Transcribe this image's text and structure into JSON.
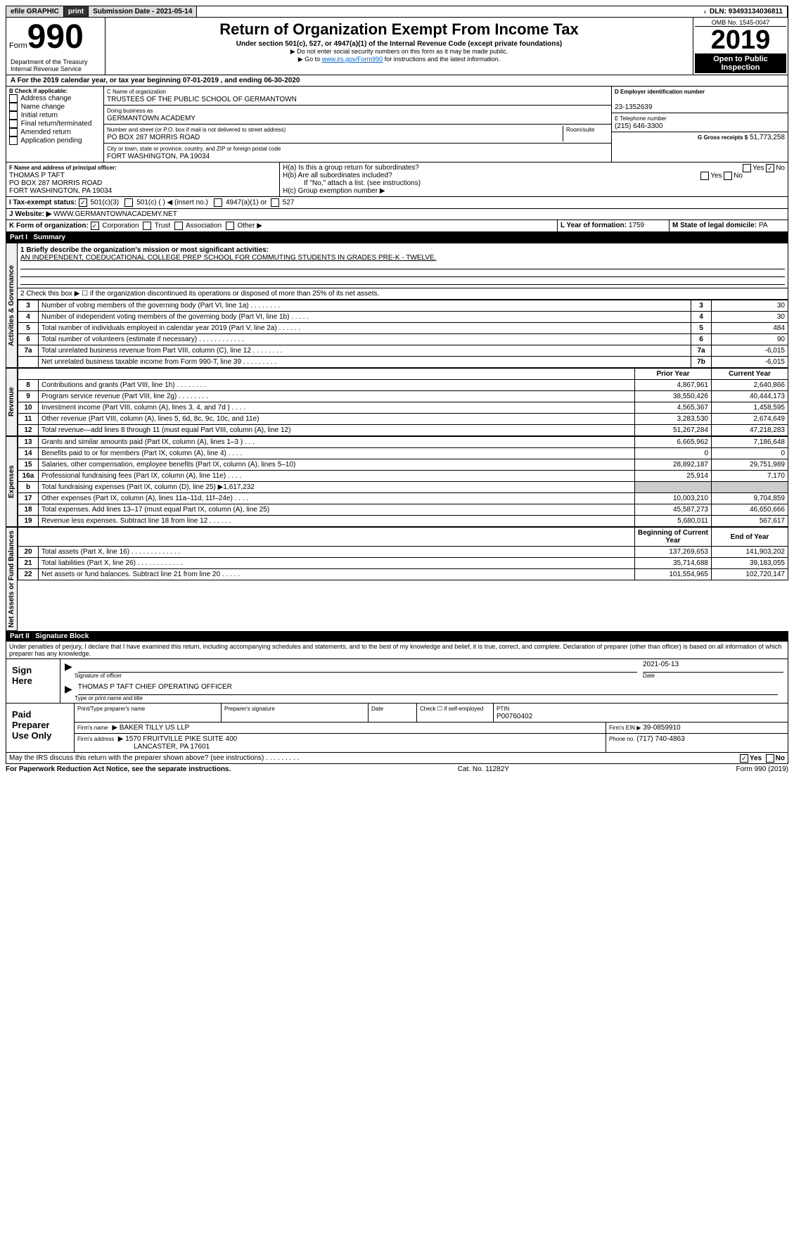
{
  "hdr": {
    "efile": "efile GRAPHIC",
    "print": "print",
    "subdate": "Submission Date - 2021-05-14",
    "dln": "DLN: 93493134036811"
  },
  "form": {
    "form": "Form",
    "num": "990",
    "title": "Return of Organization Exempt From Income Tax",
    "sub": "Under section 501(c), 527, or 4947(a)(1) of the Internal Revenue Code (except private foundations)",
    "note1": "▶ Do not enter social security numbers on this form as it may be made public.",
    "note2a": "▶ Go to ",
    "note2link": "www.irs.gov/Form990",
    "note2b": " for instructions and the latest information.",
    "omb": "OMB No. 1545-0047",
    "yr": "2019",
    "open1": "Open to Public",
    "open2": "Inspection",
    "dept": "Department of the Treasury",
    "irs": "Internal Revenue Service"
  },
  "a": {
    "line": "A For the 2019 calendar year, or tax year beginning 07-01-2019     , and ending 06-30-2020"
  },
  "b": {
    "hdr": "B Check if applicable:",
    "items": [
      "Address change",
      "Name change",
      "Initial return",
      "Final return/terminated",
      "Amended return",
      "Application pending"
    ]
  },
  "c": {
    "lbl": "C Name of organization",
    "name": "TRUSTEES OF THE PUBLIC SCHOOL OF GERMANTOWN",
    "dba_lbl": "Doing business as",
    "dba": "GERMANTOWN ACADEMY",
    "addr_lbl": "Number and street (or P.O. box if mail is not delivered to street address)",
    "room": "Room/suite",
    "addr": "PO BOX 287 MORRIS ROAD",
    "city_lbl": "City or town, state or province, country, and ZIP or foreign postal code",
    "city": "FORT WASHINGTON, PA  19034"
  },
  "d": {
    "lbl": "D Employer identification number",
    "val": "23-1352639"
  },
  "e": {
    "lbl": "E Telephone number",
    "val": "(215) 646-3300"
  },
  "g": {
    "lbl": "G Gross receipts $",
    "val": "51,773,258"
  },
  "f": {
    "lbl": "F Name and address of principal officer:",
    "name": "THOMAS P TAFT",
    "addr": "PO BOX 287 MORRIS ROAD",
    "city": "FORT WASHINGTON, PA  19034"
  },
  "h": {
    "a": "H(a)  Is this a group return for subordinates?",
    "b": "H(b)  Are all subordinates included?",
    "note": "If \"No,\" attach a list. (see instructions)",
    "c": "H(c)  Group exemption number ▶",
    "yes": "Yes",
    "no": "No"
  },
  "i": {
    "lbl": "I   Tax-exempt status:",
    "c3": "501(c)(3)",
    "c": "501(c) (   ) ◀ (insert no.)",
    "a1": "4947(a)(1) or",
    "527": "527"
  },
  "j": {
    "lbl": "J   Website: ▶",
    "val": "WWW.GERMANTOWNACADEMY.NET"
  },
  "k": {
    "lbl": "K Form of organization:",
    "corp": "Corporation",
    "trust": "Trust",
    "assoc": "Association",
    "other": "Other ▶"
  },
  "l": {
    "lbl": "L Year of formation:",
    "val": "1759"
  },
  "m": {
    "lbl": "M State of legal domicile:",
    "val": "PA"
  },
  "p1": {
    "num": "Part I",
    "title": "Summary"
  },
  "s1": {
    "lbl": "1  Briefly describe the organization's mission or most significant activities:",
    "val": "AN INDEPENDENT, COEDUCATIONAL COLLEGE PREP SCHOOL FOR COMMUTING STUDENTS IN GRADES PRE-K - TWELVE."
  },
  "s2": "2   Check this box ▶ ☐  if the organization discontinued its operations or disposed of more than 25% of its net assets.",
  "sec1": "Activities & Governance",
  "sec2": "Revenue",
  "sec3": "Expenses",
  "sec4": "Net Assets or Fund Balances",
  "py": "Prior Year",
  "cy": "Current Year",
  "bcy": "Beginning of Current Year",
  "eoy": "End of Year",
  "rows": [
    {
      "n": "3",
      "d": "Number of voting members of the governing body (Part VI, line 1a)  .    .    .    .    .    .    .    .",
      "b": "3",
      "v": "30"
    },
    {
      "n": "4",
      "d": "Number of independent voting members of the governing body (Part VI, line 1b)   .    .    .    .    .",
      "b": "4",
      "v": "30"
    },
    {
      "n": "5",
      "d": "Total number of individuals employed in calendar year 2019 (Part V, line 2a)   .    .    .    .    .    .",
      "b": "5",
      "v": "484"
    },
    {
      "n": "6",
      "d": "Total number of volunteers (estimate if necessary)   .    .    .    .    .    .    .    .    .    .    .    .",
      "b": "6",
      "v": "90"
    },
    {
      "n": "7a",
      "d": "Total unrelated business revenue from Part VIII, column (C), line 12   .    .    .    .    .    .    .    .",
      "b": "7a",
      "v": "-6,015"
    },
    {
      "n": "",
      "d": "Net unrelated business taxable income from Form 990-T, line 39   .    .    .    .    .    .    .    .    .",
      "b": "7b",
      "v": "-6,015"
    }
  ],
  "rev": [
    {
      "n": "8",
      "d": "Contributions and grants (Part VIII, line 1h)   .    .    .    .    .    .    .    .",
      "p": "4,867,961",
      "c": "2,640,866"
    },
    {
      "n": "9",
      "d": "Program service revenue (Part VIII, line 2g)   .    .    .    .    .    .    .    .",
      "p": "38,550,426",
      "c": "40,444,173"
    },
    {
      "n": "10",
      "d": "Investment income (Part VIII, column (A), lines 3, 4, and 7d )   .    .    .    .",
      "p": "4,565,367",
      "c": "1,458,595"
    },
    {
      "n": "11",
      "d": "Other revenue (Part VIII, column (A), lines 5, 6d, 8c, 9c, 10c, and 11e)",
      "p": "3,283,530",
      "c": "2,674,649"
    },
    {
      "n": "12",
      "d": "Total revenue—add lines 8 through 11 (must equal Part VIII, column (A), line 12)",
      "p": "51,267,284",
      "c": "47,218,283"
    }
  ],
  "exp": [
    {
      "n": "13",
      "d": "Grants and similar amounts paid (Part IX, column (A), lines 1–3 )   .    .    .",
      "p": "6,665,962",
      "c": "7,186,648"
    },
    {
      "n": "14",
      "d": "Benefits paid to or for members (Part IX, column (A), line 4)   .    .    .    .",
      "p": "0",
      "c": "0"
    },
    {
      "n": "15",
      "d": "Salaries, other compensation, employee benefits (Part IX, column (A), lines 5–10)",
      "p": "28,892,187",
      "c": "29,751,989"
    },
    {
      "n": "16a",
      "d": "Professional fundraising fees (Part IX, column (A), line 11e)   .    .    .    .",
      "p": "25,914",
      "c": "7,170"
    },
    {
      "n": "b",
      "d": "Total fundraising expenses (Part IX, column (D), line 25) ▶1,617,232",
      "p": "",
      "c": "",
      "shade": true
    },
    {
      "n": "17",
      "d": "Other expenses (Part IX, column (A), lines 11a–11d, 11f–24e)   .    .    .    .",
      "p": "10,003,210",
      "c": "9,704,859"
    },
    {
      "n": "18",
      "d": "Total expenses. Add lines 13–17 (must equal Part IX, column (A), line 25)",
      "p": "45,587,273",
      "c": "46,650,666"
    },
    {
      "n": "19",
      "d": "Revenue less expenses. Subtract line 18 from line 12   .    .    .    .    .    .",
      "p": "5,680,011",
      "c": "567,617"
    }
  ],
  "net": [
    {
      "n": "20",
      "d": "Total assets (Part X, line 16)   .    .    .    .    .    .    .    .    .    .    .    .    .",
      "p": "137,269,653",
      "c": "141,903,202"
    },
    {
      "n": "21",
      "d": "Total liabilities (Part X, line 26)   .    .    .    .    .    .    .    .    .    .    .    .",
      "p": "35,714,688",
      "c": "39,183,055"
    },
    {
      "n": "22",
      "d": "Net assets or fund balances. Subtract line 21 from line 20   .    .    .    .    .",
      "p": "101,554,965",
      "c": "102,720,147"
    }
  ],
  "p2": {
    "num": "Part II",
    "title": "Signature Block",
    "decl": "Under penalties of perjury, I declare that I have examined this return, including accompanying schedules and statements, and to the best of my knowledge and belief, it is true, correct, and complete. Declaration of preparer (other than officer) is based on all information of which preparer has any knowledge."
  },
  "sign": {
    "here": "Sign Here",
    "sig": "Signature of officer",
    "date": "Date",
    "dateval": "2021-05-13",
    "name": "THOMAS P TAFT  CHIEF OPERATING OFFICER",
    "type": "Type or print name and title"
  },
  "paid": {
    "lbl": "Paid Preparer Use Only",
    "pt": "Print/Type preparer's name",
    "ps": "Preparer's signature",
    "dt": "Date",
    "chk": "Check ☐ if self-employed",
    "ptin": "PTIN",
    "ptinval": "P00760402",
    "fn": "Firm's name",
    "fnval": "▶ BAKER TILLY US LLP",
    "fein": "Firm's EIN ▶",
    "feinval": "39-0859910",
    "fa": "Firm's address",
    "faval": "▶ 1570 FRUITVILLE PIKE SUITE 400",
    "facity": "LANCASTER, PA  17601",
    "ph": "Phone no.",
    "phval": "(717) 740-4863"
  },
  "foot": {
    "q": "May the IRS discuss this return with the preparer shown above? (see instructions)   .    .    .    .    .    .    .    .    .",
    "pra": "For Paperwork Reduction Act Notice, see the separate instructions.",
    "cat": "Cat. No. 11282Y",
    "form": "Form 990 (2019)"
  }
}
